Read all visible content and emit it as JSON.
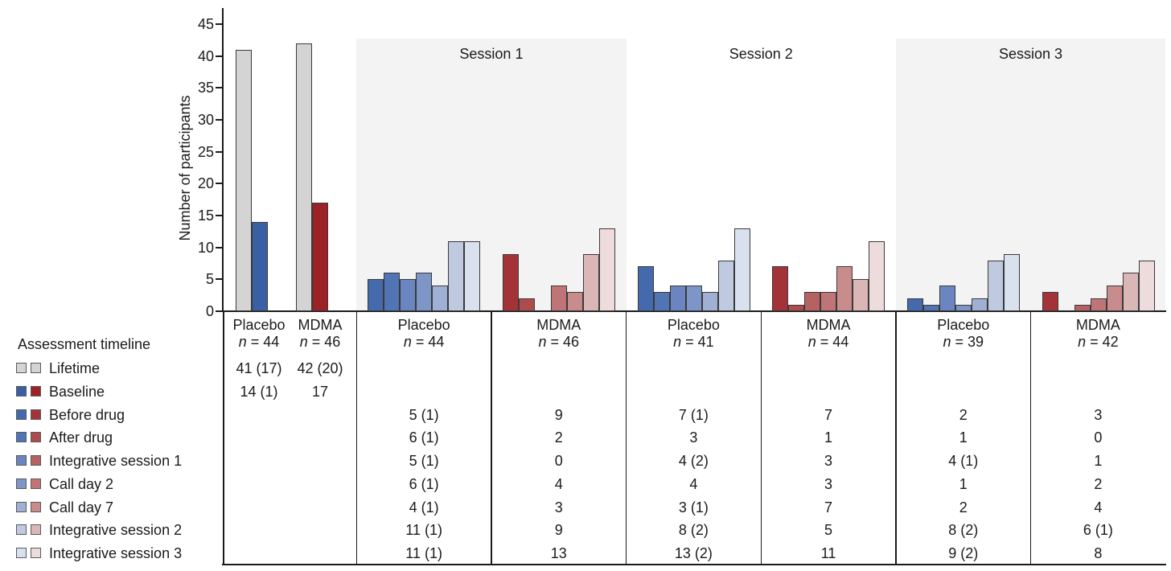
{
  "chart_data": {
    "type": "bar",
    "title": "",
    "ylabel": "Number of participants",
    "ylim": [
      0,
      45
    ],
    "yticks": [
      0,
      5,
      10,
      15,
      20,
      25,
      30,
      35,
      40,
      45
    ],
    "grid": false,
    "legend_title": "Assessment timeline",
    "legend_position": "bottom-left",
    "row_labels": [
      "Lifetime",
      "Baseline",
      "Before drug",
      "After drug",
      "Integrative session 1",
      "Call day 2",
      "Call day 7",
      "Integrative session 2",
      "Integrative session 3"
    ],
    "timepoints": [
      {
        "label": "Lifetime",
        "blue": "#d4d4d4",
        "red": "#d4d4d4"
      },
      {
        "label": "Baseline",
        "blue": "#3a5fa4",
        "red": "#9b2226"
      },
      {
        "label": "Before drug",
        "blue": "#4569ad",
        "red": "#a33338"
      },
      {
        "label": "After drug",
        "blue": "#5174b5",
        "red": "#ae4c4d"
      },
      {
        "label": "Integrative session 1",
        "blue": "#6a85bf",
        "red": "#b66263"
      },
      {
        "label": "Call day 2",
        "blue": "#7e95c8",
        "red": "#bf7577"
      },
      {
        "label": "Call day 7",
        "blue": "#9fb0d4",
        "red": "#c98c8d"
      },
      {
        "label": "Integrative session 2",
        "blue": "#bfcae1",
        "red": "#dbb6b7"
      },
      {
        "label": "Integrative session 3",
        "blue": "#d9e0ee",
        "red": "#eedcdc"
      }
    ],
    "panels": [
      {
        "session_label": "",
        "shaded": false,
        "rows": [
          "Lifetime",
          "Baseline"
        ],
        "columns": [
          {
            "header": "Placebo",
            "n_label": "n = 44",
            "palette": "blue",
            "values": [
              41,
              14
            ],
            "table": [
              "41 (17)",
              "14 (1)"
            ]
          },
          {
            "header": "MDMA",
            "n_label": "n = 46",
            "palette": "red",
            "values": [
              42,
              17
            ],
            "table": [
              "42 (20)",
              "17"
            ]
          }
        ]
      },
      {
        "session_label": "Session 1",
        "shaded": true,
        "rows": [
          "Before drug",
          "After drug",
          "Integrative session 1",
          "Call day 2",
          "Call day 7",
          "Integrative session 2",
          "Integrative session 3"
        ],
        "columns": [
          {
            "header": "Placebo",
            "n_label": "n = 44",
            "palette": "blue",
            "values": [
              5,
              6,
              5,
              6,
              4,
              11,
              11
            ],
            "table": [
              "5 (1)",
              "6 (1)",
              "5 (1)",
              "6 (1)",
              "4 (1)",
              "11 (1)",
              "11 (1)"
            ]
          },
          {
            "header": "MDMA",
            "n_label": "n = 46",
            "palette": "red",
            "values": [
              9,
              2,
              0,
              4,
              3,
              9,
              13
            ],
            "table": [
              "9",
              "2",
              "0",
              "4",
              "3",
              "9",
              "13"
            ]
          }
        ]
      },
      {
        "session_label": "Session 2",
        "shaded": false,
        "rows": [
          "Before drug",
          "After drug",
          "Integrative session 1",
          "Call day 2",
          "Call day 7",
          "Integrative session 2",
          "Integrative session 3"
        ],
        "columns": [
          {
            "header": "Placebo",
            "n_label": "n = 41",
            "palette": "blue",
            "values": [
              7,
              3,
              4,
              4,
              3,
              8,
              13
            ],
            "table": [
              "7 (1)",
              "3",
              "4 (2)",
              "4",
              "3 (1)",
              "8 (2)",
              "13 (2)"
            ]
          },
          {
            "header": "MDMA",
            "n_label": "n = 44",
            "palette": "red",
            "values": [
              7,
              1,
              3,
              3,
              7,
              5,
              11
            ],
            "table": [
              "7",
              "1",
              "3",
              "3",
              "7",
              "5",
              "11"
            ]
          }
        ]
      },
      {
        "session_label": "Session 3",
        "shaded": true,
        "rows": [
          "Before drug",
          "After drug",
          "Integrative session 1",
          "Call day 2",
          "Call day 7",
          "Integrative session 2",
          "Integrative session 3"
        ],
        "columns": [
          {
            "header": "Placebo",
            "n_label": "n = 39",
            "palette": "blue",
            "values": [
              2,
              1,
              4,
              1,
              2,
              8,
              9
            ],
            "table": [
              "2",
              "1",
              "4 (1)",
              "1",
              "2",
              "8 (2)",
              "9 (2)"
            ]
          },
          {
            "header": "MDMA",
            "n_label": "n = 42",
            "palette": "red",
            "values": [
              3,
              0,
              1,
              2,
              4,
              6,
              8
            ],
            "table": [
              "3",
              "0",
              "1",
              "2",
              "4",
              "6 (1)",
              "8"
            ]
          }
        ]
      }
    ]
  }
}
